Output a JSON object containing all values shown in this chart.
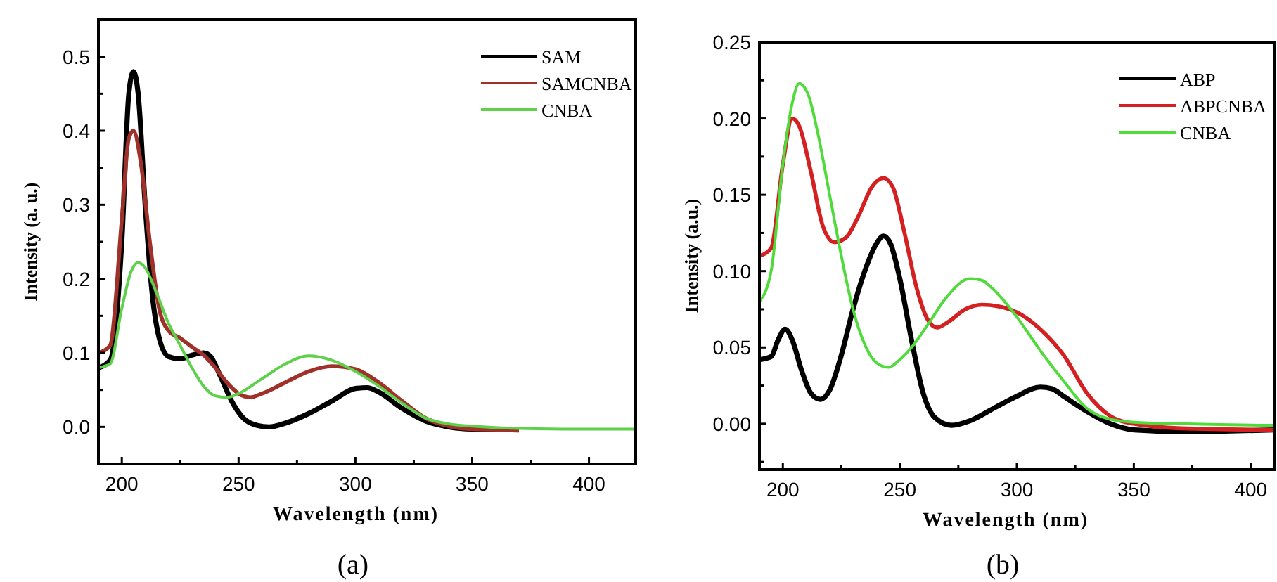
{
  "chart_data": [
    {
      "type": "line",
      "xlabel": "Wavelength (nm)",
      "ylabel": "Intensity (a. u.)",
      "annotations": [
        "(a)"
      ],
      "legend": "top right",
      "grid": false,
      "line_style": "solid",
      "marker": "none",
      "xlim": [
        190,
        420
      ],
      "ylim": [
        -0.05,
        0.55
      ],
      "xticks": [
        200,
        {
          "value": 225,
          "label": null
        },
        250,
        {
          "value": 275,
          "label": null
        },
        300,
        {
          "value": 325,
          "label": null
        },
        350,
        {
          "value": 375,
          "label": null
        },
        400
      ],
      "yticks": [
        {
          "value": -0.05,
          "label": null
        },
        "0.0",
        {
          "value": 0.05,
          "label": null
        },
        0.1,
        {
          "value": 0.15,
          "label": null
        },
        0.2,
        {
          "value": 0.25,
          "label": null
        },
        0.3,
        {
          "value": 0.35,
          "label": null
        },
        0.4,
        {
          "value": 0.45,
          "label": null
        },
        0.5
      ],
      "series": [
        {
          "name": "SAM",
          "color": "#000000",
          "x": [
            190,
            195,
            200,
            203,
            205,
            207,
            210,
            213,
            216,
            220,
            225,
            230,
            235,
            238,
            242,
            247,
            252,
            258,
            263,
            270,
            280,
            290,
            300,
            305,
            310,
            320,
            330,
            340,
            350,
            370
          ],
          "values": [
            0.08,
            0.09,
            0.25,
            0.45,
            0.48,
            0.45,
            0.3,
            0.18,
            0.12,
            0.095,
            0.092,
            0.097,
            0.1,
            0.095,
            0.07,
            0.035,
            0.012,
            0.002,
            0,
            0.005,
            0.018,
            0.035,
            0.052,
            0.053,
            0.047,
            0.025,
            0.008,
            0,
            -0.003,
            -0.004
          ]
        },
        {
          "name": "SAMCNBA",
          "color": "#a0302a",
          "x": [
            190,
            195,
            200,
            203,
            205,
            208,
            212,
            216,
            220,
            225,
            230,
            235,
            240,
            245,
            250,
            255,
            260,
            270,
            280,
            290,
            300,
            310,
            320,
            330,
            340,
            350,
            370
          ],
          "values": [
            0.1,
            0.11,
            0.28,
            0.39,
            0.4,
            0.36,
            0.25,
            0.16,
            0.13,
            0.12,
            0.108,
            0.097,
            0.08,
            0.06,
            0.045,
            0.04,
            0.045,
            0.06,
            0.075,
            0.082,
            0.078,
            0.06,
            0.035,
            0.012,
            0.001,
            -0.003,
            -0.004
          ]
        },
        {
          "name": "CNBA",
          "color": "#5ed04a",
          "x": [
            190,
            195,
            200,
            204,
            207,
            210,
            215,
            220,
            225,
            230,
            235,
            240,
            245,
            250,
            260,
            270,
            280,
            290,
            300,
            310,
            320,
            330,
            340,
            350,
            370,
            400,
            420
          ],
          "values": [
            0.08,
            0.085,
            0.16,
            0.21,
            0.222,
            0.215,
            0.18,
            0.14,
            0.11,
            0.08,
            0.055,
            0.042,
            0.04,
            0.045,
            0.065,
            0.085,
            0.096,
            0.09,
            0.075,
            0.055,
            0.032,
            0.012,
            0.004,
            0.001,
            -0.002,
            -0.003,
            -0.003
          ]
        }
      ]
    },
    {
      "type": "line",
      "xlabel": "Wavelength (nm)",
      "ylabel": "Intensity (a.u.)",
      "annotations": [
        "(b)"
      ],
      "legend": "top right",
      "grid": false,
      "line_style": "solid",
      "marker": "none",
      "xlim": [
        190,
        410
      ],
      "ylim": [
        -0.03,
        0.25
      ],
      "xticks": [
        200,
        {
          "value": 225,
          "label": null
        },
        250,
        {
          "value": 275,
          "label": null
        },
        300,
        {
          "value": 325,
          "label": null
        },
        350,
        {
          "value": 375,
          "label": null
        },
        400
      ],
      "yticks": [
        {
          "value": -0.025,
          "label": null
        },
        "0.00",
        {
          "value": 0.025,
          "label": null
        },
        "0.05",
        {
          "value": 0.075,
          "label": null
        },
        "0.10",
        {
          "value": 0.125,
          "label": null
        },
        0.15,
        {
          "value": 0.175,
          "label": null
        },
        "0.20",
        {
          "value": 0.225,
          "label": null
        },
        0.25
      ],
      "series": [
        {
          "name": "ABP",
          "color": "#000000",
          "x": [
            190,
            195,
            198,
            201,
            204,
            208,
            212,
            216,
            220,
            225,
            230,
            235,
            240,
            243,
            246,
            250,
            255,
            260,
            265,
            272,
            280,
            290,
            300,
            310,
            315,
            320,
            330,
            340,
            350,
            370,
            380,
            410
          ],
          "values": [
            0.042,
            0.044,
            0.055,
            0.062,
            0.055,
            0.035,
            0.02,
            0.016,
            0.022,
            0.045,
            0.075,
            0.1,
            0.118,
            0.123,
            0.118,
            0.095,
            0.055,
            0.02,
            0.004,
            -0.001,
            0.002,
            0.01,
            0.018,
            0.024,
            0.023,
            0.018,
            0.008,
            0,
            -0.004,
            -0.005,
            -0.005,
            -0.004
          ]
        },
        {
          "name": "ABPCNBA",
          "color": "#d42020",
          "x": [
            190,
            195,
            200,
            204,
            207,
            212,
            217,
            222,
            227,
            232,
            238,
            243,
            247,
            252,
            257,
            262,
            266,
            270,
            278,
            285,
            292,
            300,
            310,
            320,
            330,
            340,
            350,
            370,
            410
          ],
          "values": [
            0.11,
            0.115,
            0.17,
            0.2,
            0.195,
            0.165,
            0.13,
            0.119,
            0.122,
            0.135,
            0.155,
            0.161,
            0.155,
            0.125,
            0.09,
            0.068,
            0.063,
            0.066,
            0.075,
            0.078,
            0.077,
            0.073,
            0.062,
            0.045,
            0.02,
            0.005,
            0,
            -0.003,
            -0.004
          ]
        },
        {
          "name": "CNBA",
          "color": "#4fdc3a",
          "x": [
            190,
            195,
            200,
            204,
            207,
            211,
            215,
            220,
            225,
            230,
            235,
            240,
            245,
            250,
            255,
            262,
            270,
            280,
            285,
            290,
            300,
            310,
            320,
            330,
            340,
            350,
            370,
            410
          ],
          "values": [
            0.08,
            0.1,
            0.17,
            0.21,
            0.223,
            0.215,
            0.19,
            0.15,
            0.11,
            0.075,
            0.052,
            0.04,
            0.037,
            0.042,
            0.05,
            0.065,
            0.083,
            0.095,
            0.094,
            0.088,
            0.07,
            0.048,
            0.028,
            0.01,
            0.003,
            0.001,
            0,
            -0.001
          ]
        }
      ]
    }
  ]
}
